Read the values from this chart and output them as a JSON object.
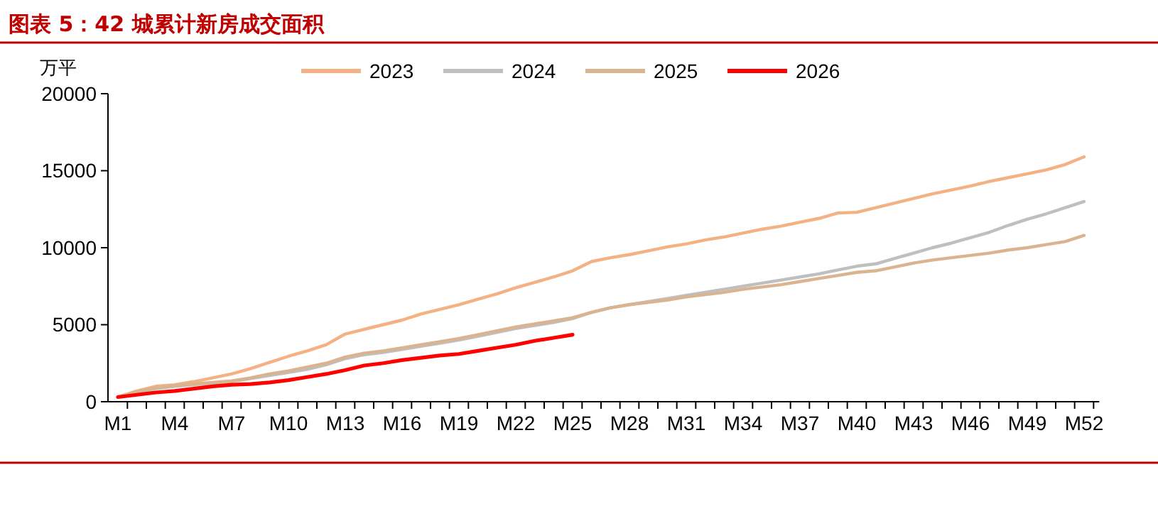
{
  "chart_data": {
    "type": "line",
    "title": "图表 5：42 城累计新房成交面积",
    "ylabel": "万平",
    "categories": [
      "M1",
      null,
      null,
      "M4",
      null,
      null,
      "M7",
      null,
      null,
      "M10",
      null,
      null,
      "M13",
      null,
      null,
      "M16",
      null,
      null,
      "M19",
      null,
      null,
      "M22",
      null,
      null,
      "M25",
      null,
      null,
      "M28",
      null,
      null,
      "M31",
      null,
      null,
      "M34",
      null,
      null,
      "M37",
      null,
      null,
      "M40",
      null,
      null,
      "M43",
      null,
      null,
      "M46",
      null,
      null,
      "M49",
      null,
      null,
      "M52"
    ],
    "series": [
      {
        "name": "2023",
        "color": "#f4b183",
        "values": [
          300,
          700,
          1000,
          1100,
          1300,
          1550,
          1800,
          2150,
          2550,
          2950,
          3300,
          3700,
          4400,
          4700,
          5000,
          5300,
          5700,
          6000,
          6300,
          6650,
          7000,
          7400,
          7750,
          8100,
          8500,
          9100,
          9350,
          9550,
          9800,
          10050,
          10250,
          10500,
          10700,
          10950,
          11200,
          11400,
          11650,
          11900,
          12250,
          12300,
          12600,
          12900,
          13200,
          13500,
          13750,
          14000,
          14300,
          14550,
          14800,
          15050,
          15400,
          15900
        ]
      },
      {
        "name": "2024",
        "color": "#bfbfbf",
        "values": [
          300,
          600,
          850,
          1000,
          1100,
          1200,
          1300,
          1500,
          1700,
          1900,
          2100,
          2400,
          2800,
          3050,
          3200,
          3400,
          3600,
          3800,
          4000,
          4250,
          4500,
          4750,
          4950,
          5150,
          5400,
          5800,
          6100,
          6300,
          6500,
          6700,
          6900,
          7100,
          7300,
          7500,
          7700,
          7900,
          8100,
          8300,
          8550,
          8800,
          8950,
          9300,
          9650,
          10000,
          10300,
          10650,
          11000,
          11450,
          11850,
          12200,
          12600,
          13000
        ]
      },
      {
        "name": "2025",
        "color": "#d9b48f",
        "values": [
          300,
          650,
          900,
          1050,
          1150,
          1250,
          1350,
          1550,
          1800,
          2000,
          2250,
          2500,
          2900,
          3150,
          3300,
          3500,
          3700,
          3900,
          4100,
          4350,
          4600,
          4850,
          5050,
          5250,
          5450,
          5800,
          6100,
          6300,
          6450,
          6600,
          6800,
          6950,
          7100,
          7300,
          7450,
          7600,
          7800,
          8000,
          8200,
          8400,
          8500,
          8750,
          9000,
          9200,
          9350,
          9500,
          9650,
          9850,
          10000,
          10200,
          10400,
          10800
        ]
      },
      {
        "name": "2026",
        "color": "#ff0000",
        "values": [
          300,
          450,
          600,
          700,
          850,
          1000,
          1100,
          1150,
          1250,
          1400,
          1600,
          1800,
          2050,
          2350,
          2500,
          2700,
          2850,
          3000,
          3100,
          3300,
          3500,
          3700,
          3950,
          4150,
          4350,
          null,
          null,
          null,
          null,
          null,
          null,
          null,
          null,
          null,
          null,
          null,
          null,
          null,
          null,
          null,
          null,
          null,
          null,
          null,
          null,
          null,
          null,
          null,
          null,
          null,
          null,
          null
        ]
      }
    ],
    "ylim": [
      0,
      20000
    ],
    "yticks": [
      0,
      5000,
      10000,
      15000,
      20000
    ],
    "grid": false,
    "legend": "top",
    "marker": "none",
    "line_style": "solid"
  }
}
